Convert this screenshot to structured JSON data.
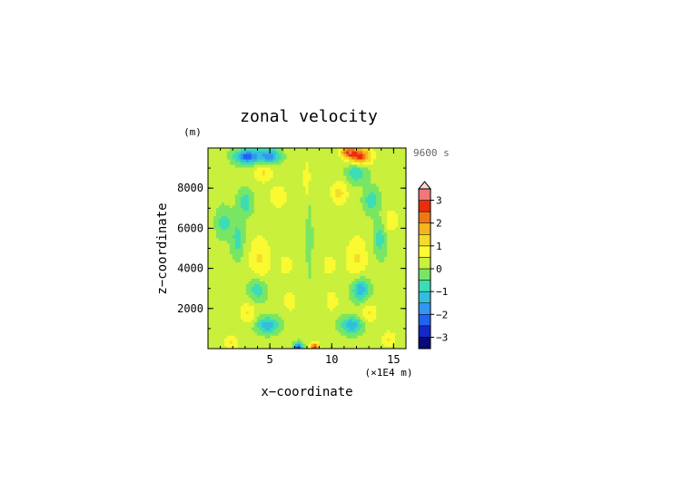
{
  "chart_data": {
    "type": "heatmap",
    "title": "zonal velocity",
    "time_label": "9600 s",
    "xlabel": "x−coordinate",
    "ylabel": "z−coordinate",
    "y_unit": "(m)",
    "x_unit": "(×1E4 m)",
    "xlim": [
      0,
      16
    ],
    "ylim": [
      0,
      10000
    ],
    "x_ticks": [
      5,
      10,
      15
    ],
    "y_ticks": [
      2000,
      4000,
      6000,
      8000
    ],
    "x_tick_labels": [
      "5",
      "10",
      "15"
    ],
    "y_tick_labels": [
      "2000",
      "4000",
      "6000",
      "8000"
    ],
    "colorbar": {
      "levels": [
        -3.5,
        -3,
        -2.5,
        -2,
        -1.5,
        -1,
        -0.5,
        0,
        0.5,
        1,
        1.5,
        2,
        2.5,
        3,
        3.5
      ],
      "colors": [
        "#0a0a78",
        "#1428c8",
        "#1e64f0",
        "#3296f0",
        "#32bedc",
        "#3cdcb4",
        "#78e664",
        "#c8f03c",
        "#fafa32",
        "#f5dc28",
        "#f5b41e",
        "#f07814",
        "#eb2d0a",
        "#f07878",
        "#f5b4b4"
      ],
      "tick_values": [
        3,
        2,
        1,
        0,
        -1,
        -2,
        -3
      ],
      "tick_labels": [
        "3",
        "2",
        "1",
        "0",
        "−1",
        "−2",
        "−3"
      ],
      "extend": "max"
    },
    "grid": false
  }
}
